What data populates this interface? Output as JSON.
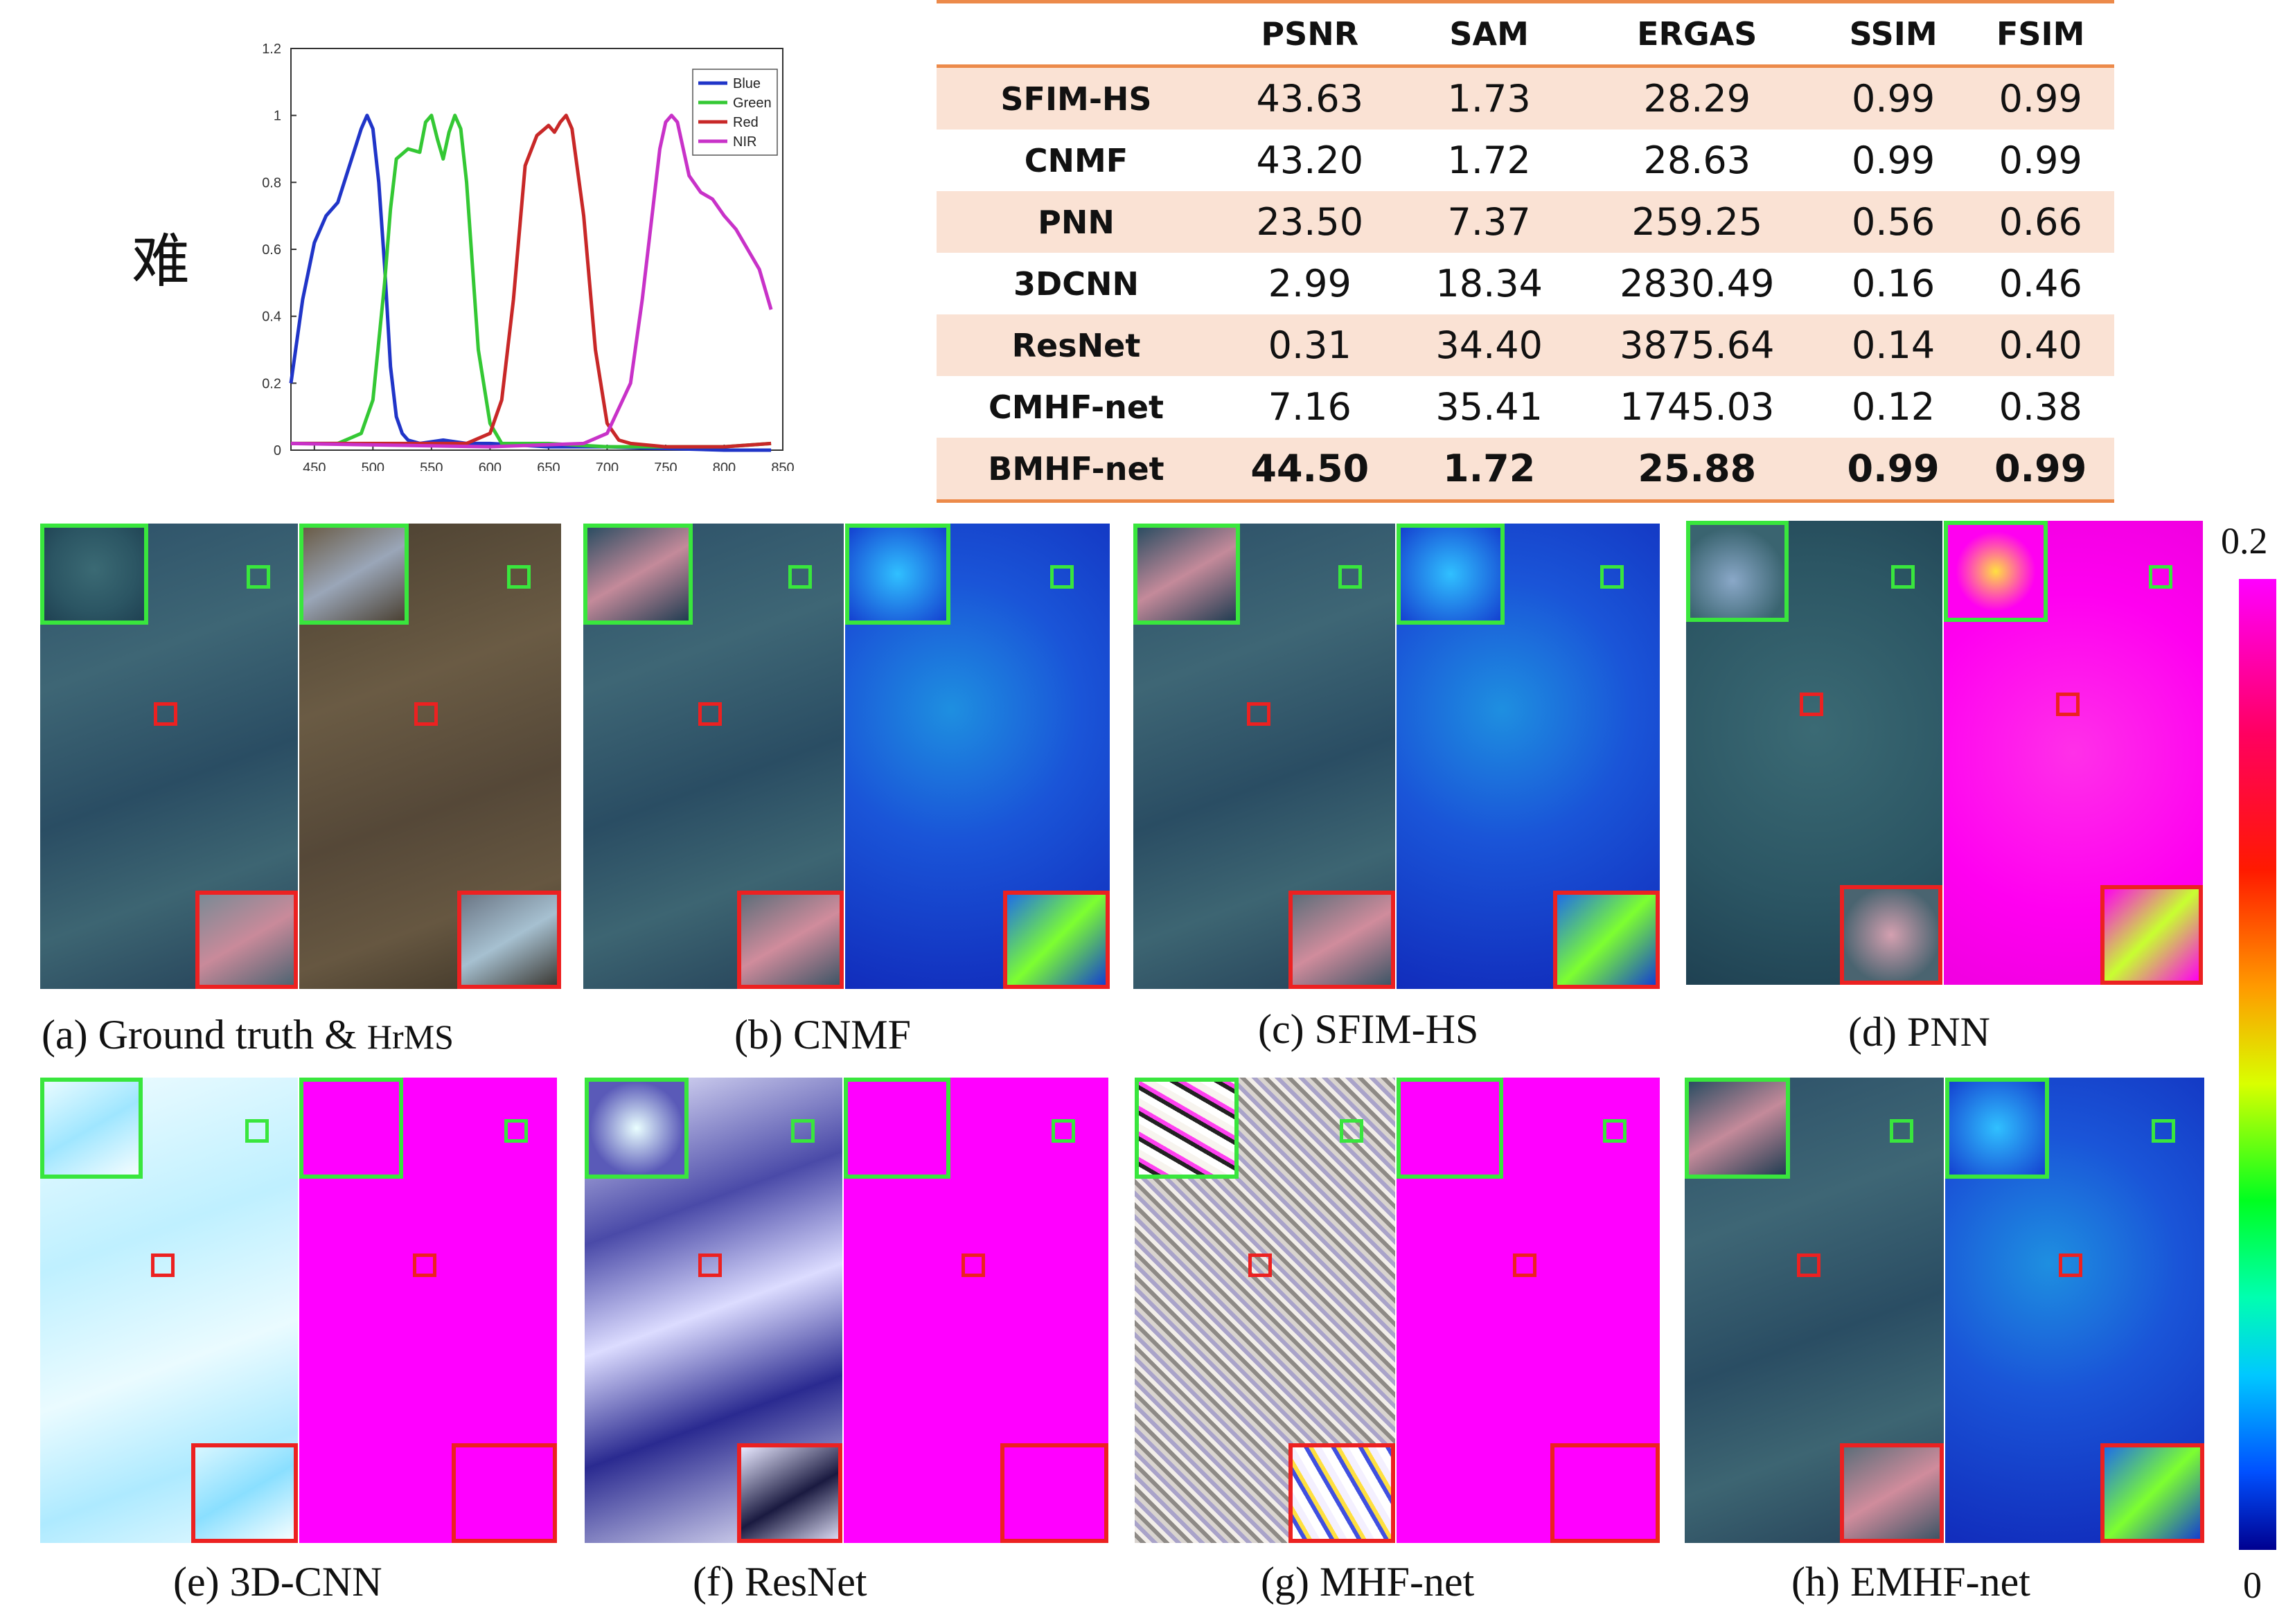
{
  "side_character": "难",
  "chart_data": {
    "type": "line",
    "title": "",
    "xlabel": "",
    "ylabel": "",
    "xlim": [
      430,
      850
    ],
    "ylim": [
      0,
      1.2
    ],
    "xticks": [
      450,
      500,
      550,
      600,
      650,
      700,
      750,
      800,
      850
    ],
    "yticks": [
      0,
      0.2,
      0.4,
      0.6,
      0.8,
      1,
      1.2
    ],
    "legend_position": "top-right",
    "series": [
      {
        "name": "Blue",
        "color": "#2035c8",
        "x": [
          430,
          440,
          450,
          460,
          470,
          480,
          490,
          495,
          500,
          505,
          510,
          515,
          520,
          525,
          530,
          540,
          560,
          580,
          600,
          650,
          700,
          800,
          840
        ],
        "y": [
          0.2,
          0.45,
          0.62,
          0.7,
          0.74,
          0.85,
          0.96,
          1.0,
          0.96,
          0.8,
          0.55,
          0.25,
          0.1,
          0.05,
          0.03,
          0.02,
          0.03,
          0.02,
          0.02,
          0.01,
          0.01,
          0.0,
          0.0
        ]
      },
      {
        "name": "Green",
        "color": "#34c834",
        "x": [
          430,
          470,
          490,
          500,
          510,
          515,
          520,
          530,
          540,
          545,
          550,
          555,
          560,
          565,
          570,
          575,
          580,
          590,
          600,
          610,
          650,
          700,
          750,
          800,
          840
        ],
        "y": [
          0.02,
          0.02,
          0.05,
          0.15,
          0.5,
          0.72,
          0.87,
          0.9,
          0.89,
          0.98,
          1.0,
          0.93,
          0.87,
          0.95,
          1.0,
          0.96,
          0.8,
          0.3,
          0.08,
          0.02,
          0.02,
          0.01,
          0.01,
          0.01,
          0.02
        ]
      },
      {
        "name": "Red",
        "color": "#c82828",
        "x": [
          430,
          580,
          600,
          610,
          620,
          630,
          640,
          650,
          655,
          660,
          665,
          670,
          680,
          690,
          700,
          710,
          720,
          750,
          800,
          840
        ],
        "y": [
          0.02,
          0.02,
          0.05,
          0.15,
          0.45,
          0.85,
          0.94,
          0.97,
          0.95,
          0.98,
          1.0,
          0.96,
          0.7,
          0.3,
          0.08,
          0.03,
          0.02,
          0.01,
          0.01,
          0.02
        ]
      },
      {
        "name": "NIR",
        "color": "#c832c8",
        "x": [
          430,
          600,
          680,
          700,
          720,
          730,
          740,
          745,
          750,
          755,
          760,
          765,
          770,
          780,
          790,
          800,
          810,
          820,
          830,
          840
        ],
        "y": [
          0.02,
          0.01,
          0.02,
          0.05,
          0.2,
          0.45,
          0.75,
          0.9,
          0.98,
          1.0,
          0.98,
          0.9,
          0.82,
          0.77,
          0.75,
          0.7,
          0.66,
          0.6,
          0.54,
          0.42
        ]
      }
    ]
  },
  "metrics_table": {
    "headers": [
      "",
      "PSNR",
      "SAM",
      "ERGAS",
      "SSIM",
      "FSIM"
    ],
    "rows": [
      {
        "method": "SFIM-HS",
        "psnr": "43.63",
        "sam": "1.73",
        "ergas": "28.29",
        "ssim": "0.99",
        "fsim": "0.99"
      },
      {
        "method": "CNMF",
        "psnr": "43.20",
        "sam": "1.72",
        "ergas": "28.63",
        "ssim": "0.99",
        "fsim": "0.99"
      },
      {
        "method": "PNN",
        "psnr": "23.50",
        "sam": "7.37",
        "ergas": "259.25",
        "ssim": "0.56",
        "fsim": "0.66"
      },
      {
        "method": "3DCNN",
        "psnr": "2.99",
        "sam": "18.34",
        "ergas": "2830.49",
        "ssim": "0.16",
        "fsim": "0.46"
      },
      {
        "method": "ResNet",
        "psnr": "0.31",
        "sam": "34.40",
        "ergas": "3875.64",
        "ssim": "0.14",
        "fsim": "0.40"
      },
      {
        "method": "CMHF-net",
        "psnr": "7.16",
        "sam": "35.41",
        "ergas": "1745.03",
        "ssim": "0.12",
        "fsim": "0.38"
      },
      {
        "method": "BMHF-net",
        "psnr": "44.50",
        "sam": "1.72",
        "ergas": "25.88",
        "ssim": "0.99",
        "fsim": "0.99"
      }
    ]
  },
  "captions": {
    "a_main": "(a) Ground truth & ",
    "a_small": "HrMS",
    "b": "(b) CNMF",
    "c": "(c) SFIM-HS",
    "d": "(d) PNN",
    "e": "(e) 3D-CNN",
    "f": "(f) ResNet",
    "g": "(g) MHF-net",
    "h": "(h) EMHF-net"
  },
  "colorbar": {
    "max_label": "0.2",
    "min_label": "0"
  }
}
